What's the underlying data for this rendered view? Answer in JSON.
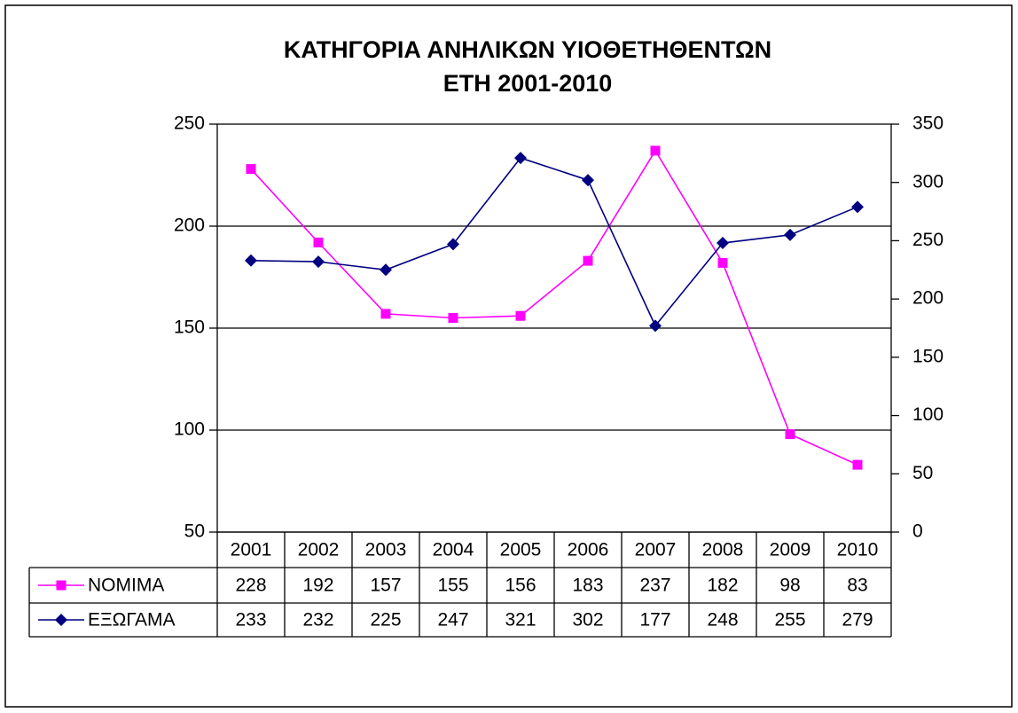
{
  "chart_data": {
    "type": "line",
    "title": "ΚΑΤΗΓΟΡΙΑ ΑΝΗΛΙΚΩΝ ΥΙΟΘΕΤΗΘΕΝΤΩΝ",
    "subtitle": "ΕΤΗ 2001-2010",
    "categories": [
      "2001",
      "2002",
      "2003",
      "2004",
      "2005",
      "2006",
      "2007",
      "2008",
      "2009",
      "2010"
    ],
    "series": [
      {
        "name": "ΝΟΜΙΜΑ",
        "color": "#ff00ff",
        "marker": "square",
        "values": [
          228,
          192,
          157,
          155,
          156,
          183,
          237,
          182,
          98,
          83
        ]
      },
      {
        "name": "ΕΞΩΓΑΜΑ",
        "color": "#000080",
        "marker": "diamond",
        "axis": "y2",
        "values": [
          233,
          232,
          225,
          247,
          321,
          302,
          177,
          248,
          255,
          279
        ]
      }
    ],
    "ylim": [
      50,
      250
    ],
    "yticks": [
      50,
      100,
      150,
      200,
      250
    ],
    "y2lim": [
      0,
      350
    ],
    "y2ticks": [
      0,
      50,
      100,
      150,
      200,
      250,
      300,
      350
    ],
    "grid": true,
    "data_table": true
  }
}
